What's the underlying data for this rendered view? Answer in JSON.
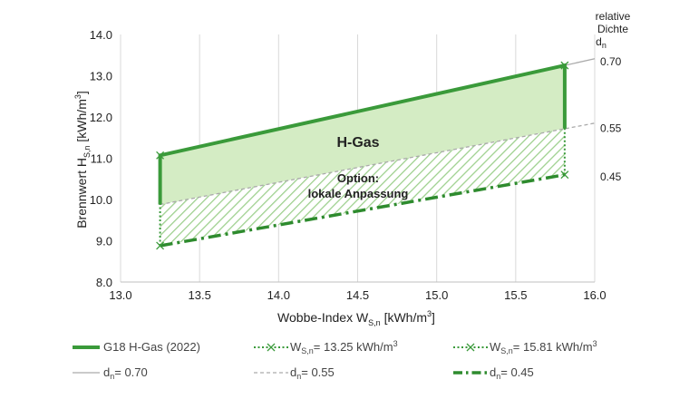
{
  "chart_data": {
    "type": "line",
    "xlabel": {
      "main": "Wobbe-Index W",
      "sub": "S,n",
      "unit": " [kWh/m",
      "sup": "3",
      "close": "]"
    },
    "ylabel": {
      "main": "Brennwert H",
      "sub": "S,n",
      "unit": " [kWh/m",
      "sup": "3",
      "close": "]"
    },
    "xlim": [
      13.0,
      16.0
    ],
    "ylim": [
      8.0,
      14.0
    ],
    "xticks": [
      "13.0",
      "13.5",
      "14.0",
      "14.5",
      "15.0",
      "15.5",
      "16.0"
    ],
    "yticks": [
      "8.0",
      "9.0",
      "10.0",
      "11.0",
      "12.0",
      "13.0",
      "14.0"
    ],
    "grid": "vertical",
    "regions": {
      "h_gas": {
        "label": "H-Gas",
        "polygon": [
          [
            13.25,
            11.07
          ],
          [
            15.81,
            13.25
          ],
          [
            15.81,
            11.72
          ],
          [
            13.25,
            9.88
          ]
        ],
        "color": "#d4ecc4"
      },
      "option": {
        "label_line1": "Option:",
        "label_line2": "lokale Anpassung",
        "polygon": [
          [
            13.25,
            9.88
          ],
          [
            15.81,
            11.72
          ],
          [
            15.81,
            10.6
          ],
          [
            13.25,
            8.88
          ]
        ]
      }
    },
    "series": [
      {
        "name": "G18 H-Gas (2022)",
        "style": "thick-solid",
        "color": "#3a9a3a",
        "points": [
          [
            13.25,
            9.88
          ],
          [
            13.25,
            11.07
          ],
          [
            15.81,
            13.25
          ],
          [
            15.81,
            11.72
          ]
        ]
      },
      {
        "name_main": "W",
        "name_sub": "S,n",
        "name_rest": "= 13.25 kWh/m",
        "name_sup": "3",
        "style": "dotted-x",
        "color": "#3a9a3a",
        "x": 13.25,
        "y": [
          8.88,
          11.07
        ]
      },
      {
        "name_main": "W",
        "name_sub": "S,n",
        "name_rest": "= 15.81 kWh/m",
        "name_sup": "3",
        "style": "dotted-x",
        "color": "#3a9a3a",
        "x": 15.81,
        "y": [
          10.6,
          13.25
        ]
      },
      {
        "name_main": "d",
        "name_sub": "n",
        "name_rest": "= 0.70",
        "style": "thin-solid",
        "color": "#aaaaaa",
        "points": [
          [
            13.25,
            11.07
          ],
          [
            16.0,
            13.41
          ]
        ],
        "right_label": "0.70",
        "right_label_y": 13.34
      },
      {
        "name_main": "d",
        "name_sub": "n",
        "name_rest": "= 0.55",
        "style": "thin-dashed",
        "color": "#aaaaaa",
        "points": [
          [
            13.25,
            9.88
          ],
          [
            16.0,
            11.85
          ]
        ],
        "right_label": "0.55",
        "right_label_y": 11.72
      },
      {
        "name_main": "d",
        "name_sub": "n",
        "name_rest": "= 0.45",
        "style": "thick-dashdot",
        "color": "#2e8b2e",
        "points": [
          [
            13.25,
            8.88
          ],
          [
            15.81,
            10.6
          ]
        ],
        "right_label": "0.45",
        "right_label_y": 10.55
      }
    ],
    "right_header": {
      "line1": "relative",
      "line2": "Dichte",
      "line3_main": "d",
      "line3_sub": "n"
    },
    "legend": "bottom"
  }
}
